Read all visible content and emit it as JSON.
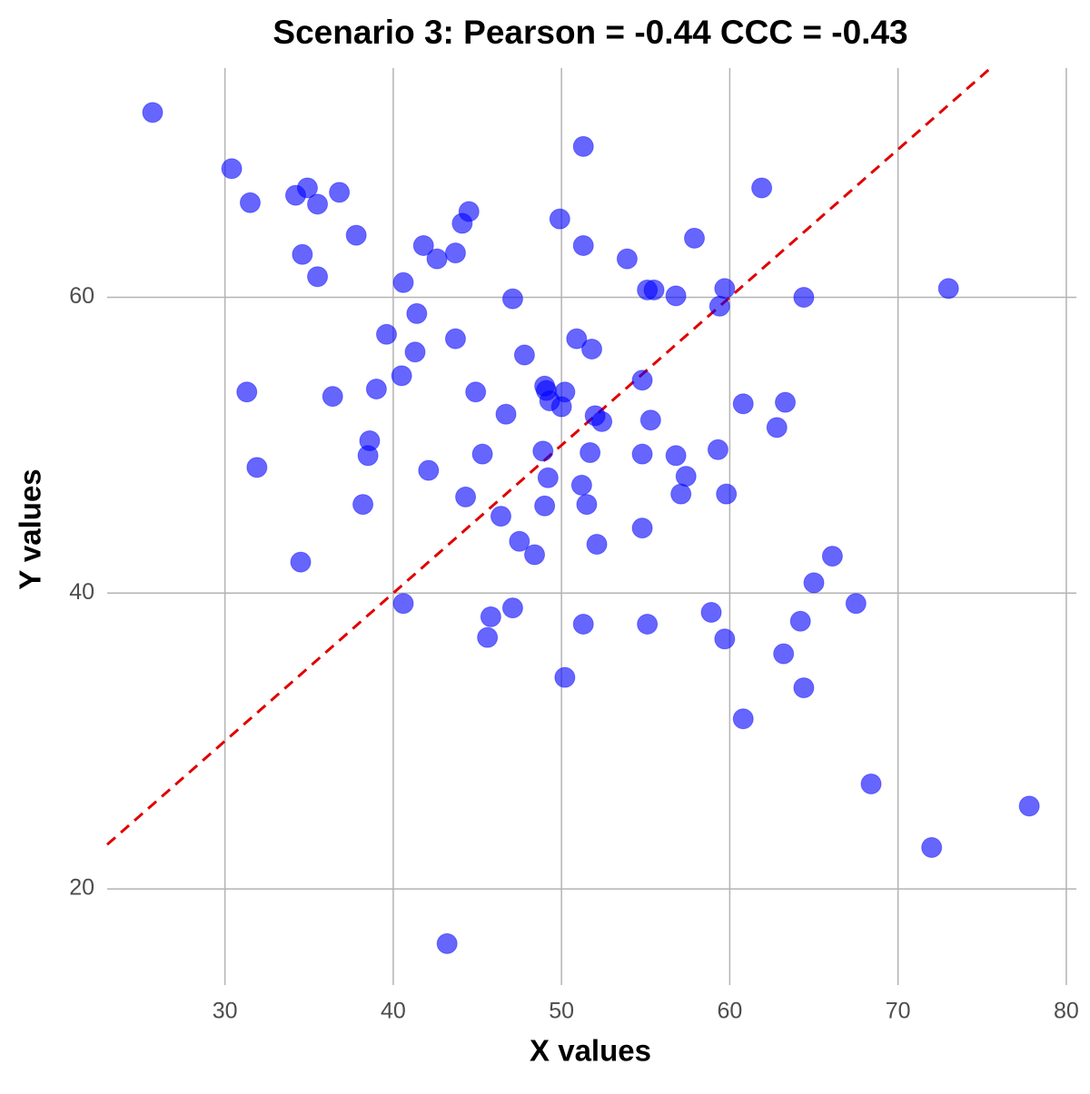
{
  "chart_data": {
    "type": "scatter",
    "title": "Scenario 3: Pearson = -0.44 CCC = -0.43",
    "x_label": "X values",
    "y_label": "Y values",
    "x": [
      25.7,
      30.4,
      31.5,
      34.2,
      34.9,
      35.5,
      36.8,
      34.6,
      35.5,
      37.8,
      40.6,
      41.8,
      42.6,
      43.7,
      44.1,
      44.5,
      51.3,
      49.9,
      51.3,
      53.9,
      57.9,
      61.9,
      55.1,
      55.5,
      56.8,
      59.7,
      59.4,
      64.4,
      73.0,
      47.1,
      41.4,
      39.6,
      41.3,
      43.7,
      47.8,
      50.9,
      51.8,
      40.5,
      39.0,
      36.4,
      31.3,
      44.9,
      49.0,
      49.1,
      49.3,
      50.0,
      50.2,
      54.8,
      46.7,
      52.0,
      52.4,
      55.3,
      60.8,
      63.3,
      62.8,
      38.6,
      38.5,
      31.9,
      45.3,
      48.9,
      51.7,
      54.8,
      56.8,
      59.3,
      42.1,
      49.2,
      57.4,
      51.2,
      57.1,
      59.8,
      44.3,
      38.2,
      49.0,
      51.5,
      46.4,
      54.8,
      47.5,
      52.1,
      48.4,
      34.5,
      66.1,
      65.0,
      40.6,
      47.1,
      45.8,
      51.3,
      55.1,
      58.9,
      64.2,
      67.5,
      45.6,
      59.7,
      63.2,
      50.2,
      64.4,
      60.8,
      68.4,
      77.8,
      72.0,
      43.2
    ],
    "values": [
      72.5,
      68.7,
      66.4,
      66.9,
      67.4,
      66.3,
      67.1,
      62.9,
      61.4,
      64.2,
      61.0,
      63.5,
      62.6,
      63.0,
      65.0,
      65.8,
      70.2,
      65.3,
      63.5,
      62.6,
      64.0,
      67.4,
      60.5,
      60.5,
      60.1,
      60.6,
      59.4,
      60.0,
      60.6,
      59.9,
      58.9,
      57.5,
      56.3,
      57.2,
      56.1,
      57.2,
      56.5,
      54.7,
      53.8,
      53.3,
      53.6,
      53.6,
      54.0,
      53.7,
      53.0,
      52.6,
      53.6,
      54.4,
      52.1,
      52.0,
      51.6,
      51.7,
      52.8,
      52.9,
      51.2,
      50.3,
      49.3,
      48.5,
      49.4,
      49.6,
      49.5,
      49.4,
      49.3,
      49.7,
      48.3,
      47.8,
      47.9,
      47.3,
      46.7,
      46.7,
      46.5,
      46.0,
      45.9,
      46.0,
      45.2,
      44.4,
      43.5,
      43.3,
      42.6,
      42.1,
      42.5,
      40.7,
      39.3,
      39.0,
      38.4,
      37.9,
      37.9,
      38.7,
      38.1,
      39.3,
      37.0,
      36.9,
      35.9,
      34.3,
      33.6,
      31.5,
      27.1,
      25.6,
      22.8,
      16.3
    ],
    "color": "#0000ff",
    "xlim": [
      23.0,
      80.6
    ],
    "xticks": [
      30,
      40,
      50,
      60,
      70,
      80
    ],
    "ylim": [
      13.5,
      75.5
    ],
    "yticks": [
      20,
      40,
      60
    ],
    "grid": true,
    "identity_line": true,
    "identity_color": "#e00000"
  }
}
